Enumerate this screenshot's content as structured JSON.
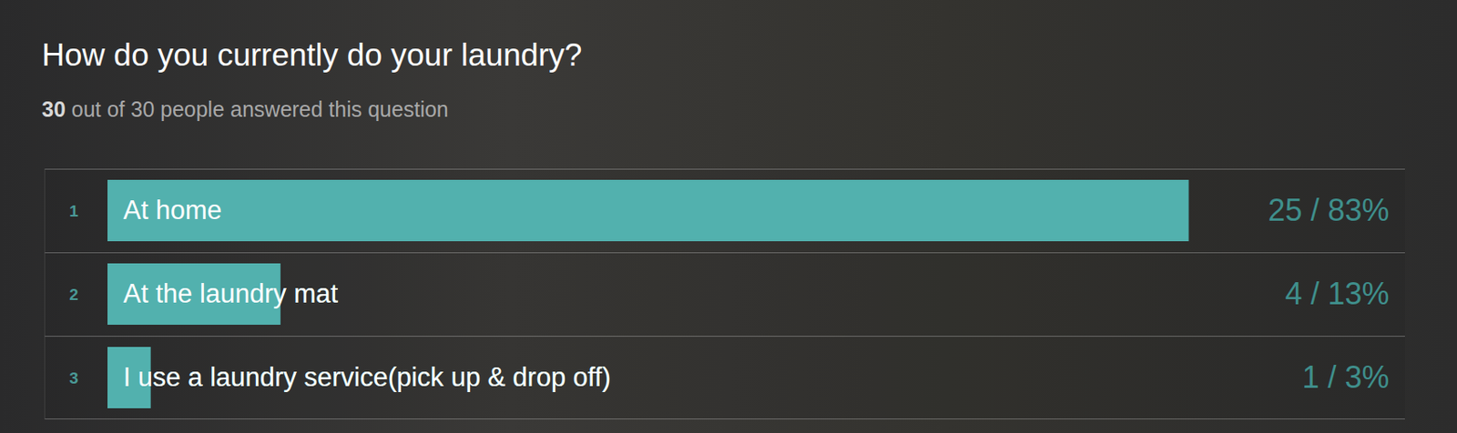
{
  "chart_data": {
    "type": "bar",
    "orientation": "horizontal",
    "title": "How do you currently do your laundry?",
    "subtitle": "30 out of 30 people answered this question",
    "categories": [
      "At home",
      "At the laundry mat",
      "I use a laundry service(pick up & drop off)"
    ],
    "ranks": [
      1,
      2,
      3
    ],
    "values": [
      25,
      4,
      1
    ],
    "value_labels": [
      "25 / 83%",
      "4 / 13%",
      "1 / 3%"
    ],
    "xlim": [
      0,
      30
    ],
    "color": "#52b1ae",
    "data_labels": true,
    "tick_labels": false,
    "grid": false
  }
}
